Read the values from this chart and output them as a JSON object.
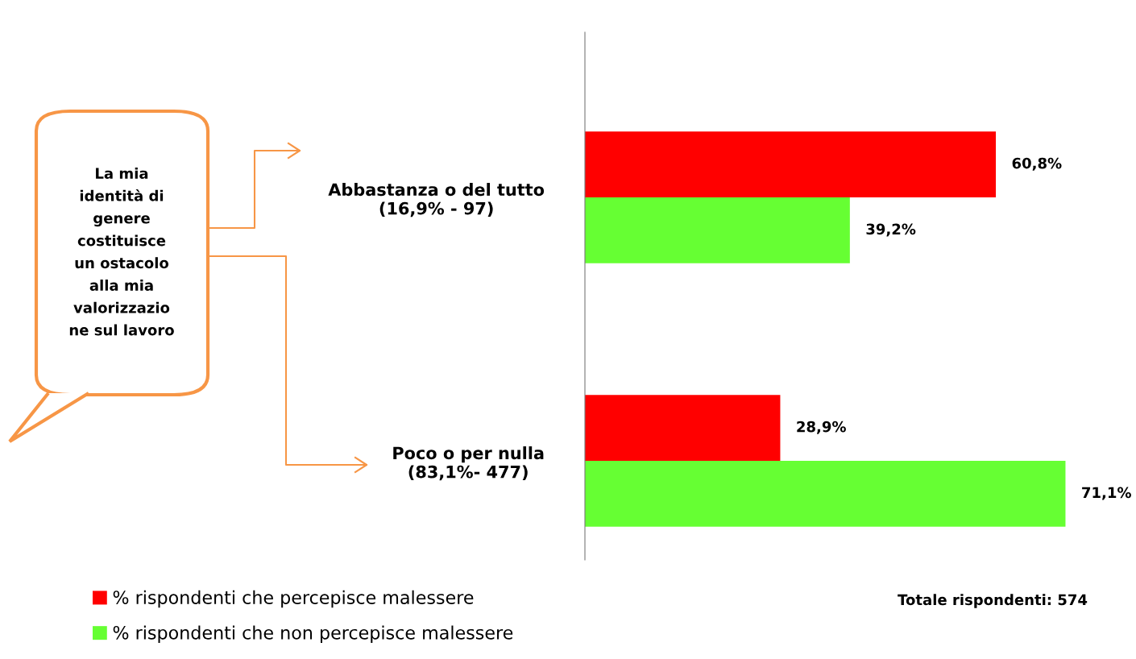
{
  "chart_data": {
    "type": "bar",
    "orientation": "horizontal",
    "categories": [
      "Abbastanza o del tutto\n(16,9% - 97)",
      "Poco o per nulla\n(83,1%- 477)"
    ],
    "series": [
      {
        "name": "% rispondenti che percepisce malessere",
        "color": "#ff0000",
        "values": [
          60.8,
          28.9
        ],
        "value_labels": [
          "60,8%",
          "28,9%"
        ]
      },
      {
        "name": "% rispondenti che non percepisce malessere",
        "color": "#66ff33",
        "values": [
          39.2,
          71.1
        ],
        "value_labels": [
          "39,2%",
          "71,1%"
        ]
      }
    ],
    "legend": "bottom left",
    "grid": false,
    "annotations": [
      "La mia\nidentità di\ngenere\ncostituisce\nun ostacolo\nalla mia\nvalorizzazio\nne sul lavoro",
      "Totale rispondenti: 574"
    ]
  }
}
